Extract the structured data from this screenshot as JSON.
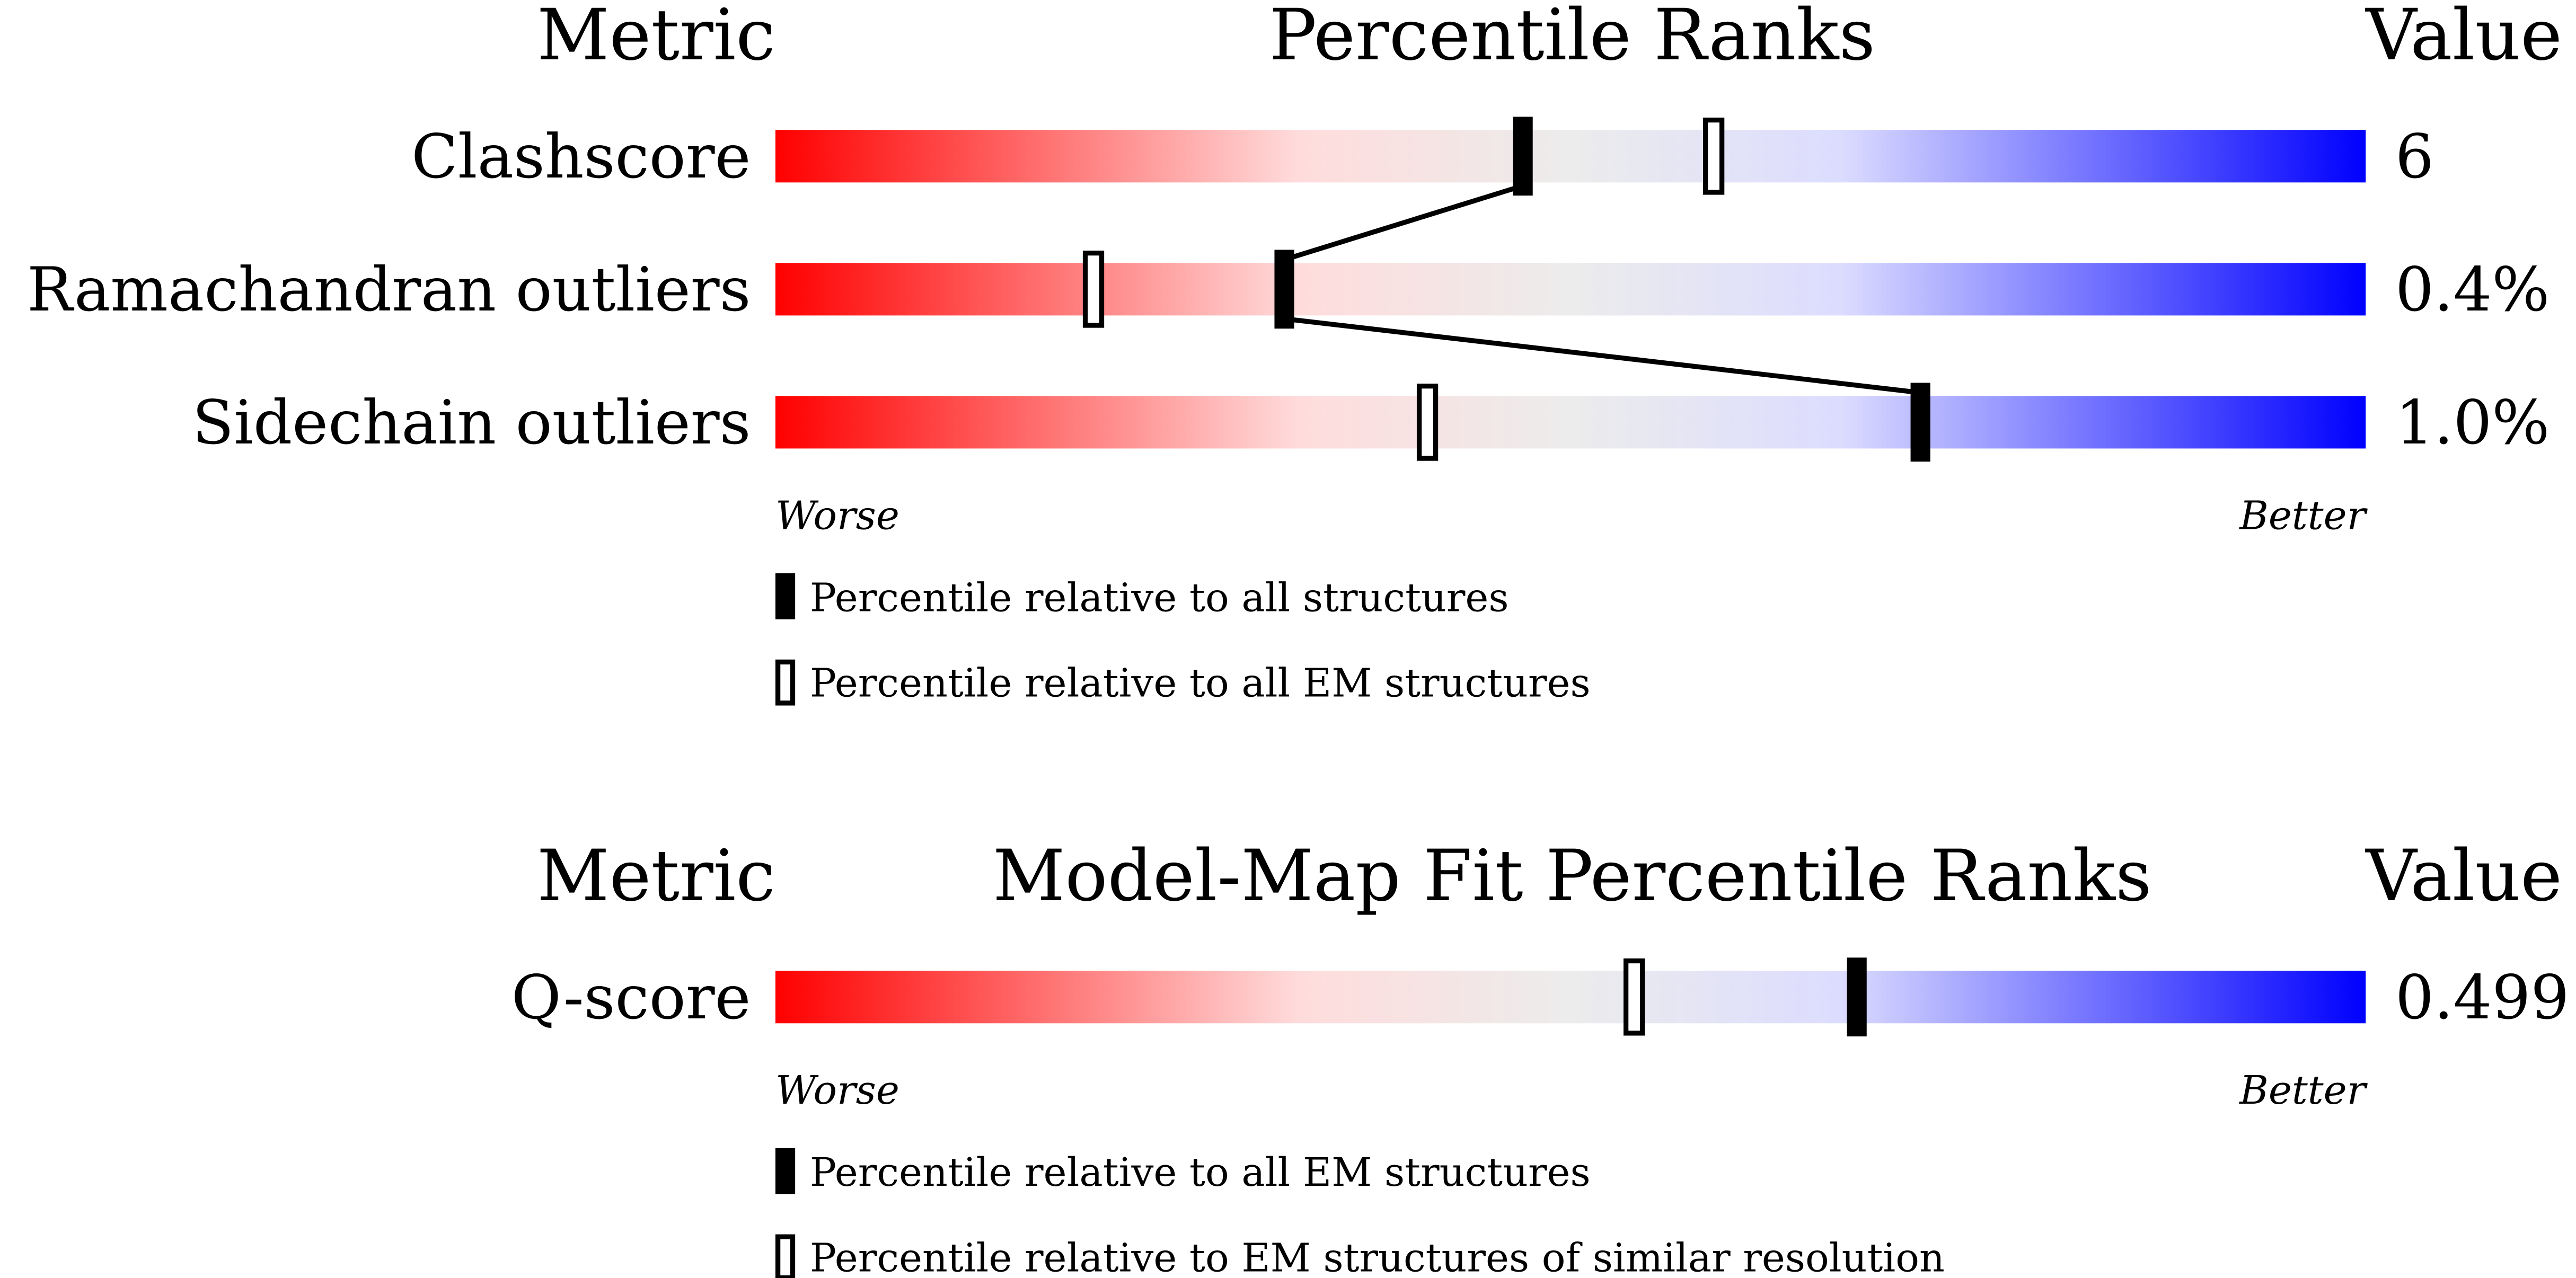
{
  "chart_data": [
    {
      "type": "percentile-slider",
      "metric_header": "Metric",
      "title": "Percentile Ranks",
      "value_header": "Value",
      "xlim": [
        0,
        100
      ],
      "metrics": [
        {
          "name": "Clashscore",
          "value": "6",
          "percentiles": [
            47,
            59
          ]
        },
        {
          "name": "Ramachandran outliers",
          "value": "0.4%",
          "percentiles": [
            32,
            20
          ]
        },
        {
          "name": "Sidechain outliers",
          "value": "1.0%",
          "percentiles": [
            72,
            41
          ]
        }
      ],
      "worse_label": "Worse",
      "better_label": "Better",
      "legend": [
        "Percentile relative to all structures",
        "Percentile relative to all EM structures"
      ]
    },
    {
      "type": "percentile-slider",
      "metric_header": "Metric",
      "title": "Model-Map Fit Percentile Ranks",
      "value_header": "Value",
      "xlim": [
        0,
        100
      ],
      "metrics": [
        {
          "name": "Q-score",
          "value": "0.499",
          "percentiles": [
            68,
            54
          ]
        }
      ],
      "worse_label": "Worse",
      "better_label": "Better",
      "legend": [
        "Percentile relative to all EM structures",
        "Percentile relative to EM structures of similar resolution"
      ]
    }
  ]
}
